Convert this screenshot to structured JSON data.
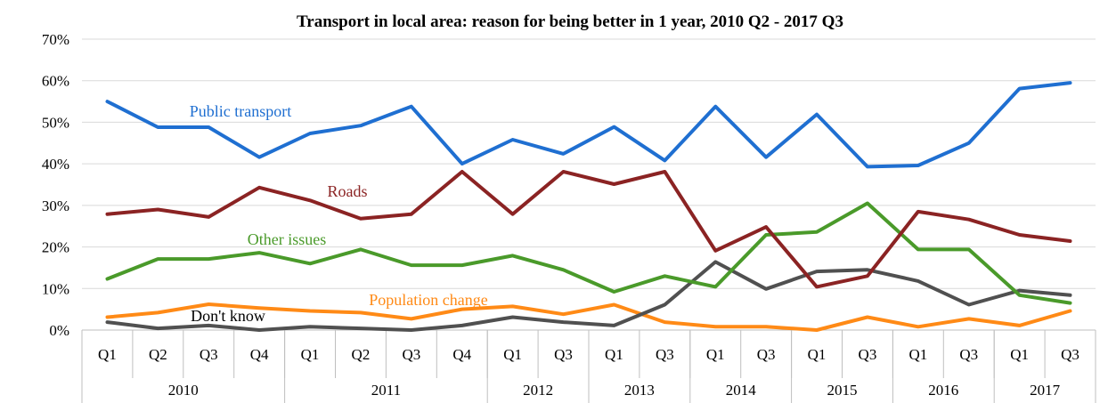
{
  "chart_data": {
    "type": "line",
    "title": "Transport in local area: reason for being better in 1 year, 2010 Q2 - 2017 Q3",
    "xlabel": "",
    "ylabel": "",
    "ylim": [
      0,
      70
    ],
    "yticks": [
      "0%",
      "10%",
      "20%",
      "30%",
      "40%",
      "50%",
      "60%",
      "70%"
    ],
    "grid": "horizontal",
    "categories": [
      "Q1",
      "Q2",
      "Q3",
      "Q4",
      "Q1",
      "Q2",
      "Q3",
      "Q4",
      "Q1",
      "Q3",
      "Q1",
      "Q3",
      "Q1",
      "Q3",
      "Q1",
      "Q3",
      "Q1",
      "Q3",
      "Q1",
      "Q3"
    ],
    "years": [
      {
        "label": "2010",
        "span": 4
      },
      {
        "label": "2011",
        "span": 4
      },
      {
        "label": "2012",
        "span": 2
      },
      {
        "label": "2013",
        "span": 2
      },
      {
        "label": "2014",
        "span": 2
      },
      {
        "label": "2015",
        "span": 2
      },
      {
        "label": "2016",
        "span": 2
      },
      {
        "label": "2017",
        "span": 2
      }
    ],
    "series": [
      {
        "name": "Public transport",
        "color": "#1f6fd1",
        "values": [
          55,
          48.8,
          48.8,
          41.6,
          47.3,
          49.2,
          53.8,
          40.0,
          45.8,
          42.4,
          48.9,
          40.8,
          53.8,
          41.6,
          51.9,
          39.3,
          39.6,
          45.0,
          58.1,
          59.5
        ]
      },
      {
        "name": "Roads",
        "color": "#8b2323",
        "values": [
          27.9,
          29.0,
          27.2,
          34.3,
          31.2,
          26.8,
          27.9,
          38.1,
          27.9,
          38.1,
          35.1,
          38.1,
          19.1,
          24.8,
          10.4,
          13.0,
          28.5,
          26.6,
          22.9,
          21.4
        ]
      },
      {
        "name": "Other issues",
        "color": "#4a9a2a",
        "values": [
          12.3,
          17.1,
          17.1,
          18.6,
          16.0,
          19.4,
          15.6,
          15.6,
          17.9,
          14.5,
          9.2,
          13.0,
          10.4,
          22.9,
          23.6,
          30.5,
          19.4,
          19.4,
          8.4,
          6.5
        ]
      },
      {
        "name": "Population change",
        "color": "#ff8a16",
        "values": [
          3.1,
          4.2,
          6.2,
          5.3,
          4.6,
          4.2,
          2.7,
          5.0,
          5.7,
          3.8,
          6.1,
          1.9,
          0.8,
          0.8,
          0.0,
          3.1,
          0.8,
          2.7,
          1.1,
          4.6
        ]
      },
      {
        "name": "Don't know",
        "color": "#505050",
        "values": [
          1.9,
          0.4,
          1.1,
          0.0,
          0.8,
          0.4,
          0.0,
          1.1,
          3.1,
          1.9,
          1.1,
          6.1,
          16.4,
          9.9,
          14.1,
          14.5,
          11.8,
          6.1,
          9.5,
          8.4
        ]
      }
    ]
  }
}
